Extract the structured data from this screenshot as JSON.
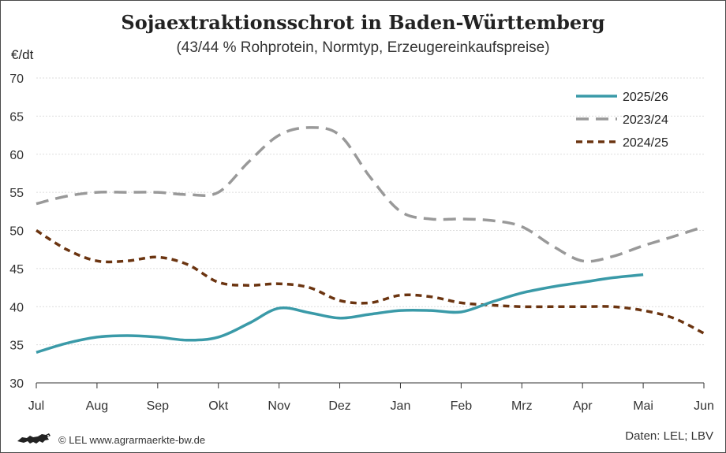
{
  "header": {
    "title": "Sojaextraktionsschrot in Baden-Württemberg",
    "subtitle": "(43/44 % Rohprotein, Normtyp, Erzeugereinkaufspreise)",
    "unit": "€/dt"
  },
  "footer": {
    "copyright": "© LEL www.agrarmaerkte-bw.de",
    "source": "Daten: LEL; LBV",
    "logo_icon": "lion-logo-icon"
  },
  "chart_data": {
    "type": "line",
    "categories": [
      "Jul",
      "Aug",
      "Sep",
      "Okt",
      "Nov",
      "Dez",
      "Jan",
      "Feb",
      "Mrz",
      "Apr",
      "Mai",
      "Jun"
    ],
    "x": [
      0,
      0.5,
      1,
      1.5,
      2,
      2.5,
      3,
      3.5,
      4,
      4.5,
      5,
      5.5,
      6,
      6.5,
      7,
      7.5,
      8,
      8.5,
      9,
      9.5,
      10,
      10.5,
      11
    ],
    "ylim": [
      30,
      70
    ],
    "yticks": [
      30,
      35,
      40,
      45,
      50,
      55,
      60,
      65,
      70
    ],
    "grid": true,
    "legend": "top-right",
    "series": [
      {
        "name": "2025/26",
        "color": "#3a9aa8",
        "dash": "solid",
        "values": [
          34,
          35.2,
          36,
          36.2,
          36,
          35.6,
          36,
          37.8,
          39.8,
          39.2,
          38.5,
          39,
          39.5,
          39.5,
          39.3,
          40.6,
          41.8,
          42.6,
          43.2,
          43.8,
          44.2,
          null,
          null
        ]
      },
      {
        "name": "2023/24",
        "color": "#999999",
        "dash": "long",
        "values": [
          53.5,
          54.5,
          55,
          55,
          55,
          54.7,
          55,
          59,
          62.5,
          63.5,
          62.5,
          57,
          52.5,
          51.5,
          51.5,
          51.3,
          50.5,
          48,
          46,
          46.6,
          48,
          49.2,
          50.5
        ]
      },
      {
        "name": "2024/25",
        "color": "#6b3410",
        "dash": "short",
        "values": [
          50,
          47.5,
          46,
          46,
          46.5,
          45.5,
          43.2,
          42.8,
          43,
          42.5,
          40.8,
          40.5,
          41.5,
          41.3,
          40.5,
          40.2,
          40,
          40,
          40,
          40,
          39.5,
          38.5,
          36.5
        ]
      }
    ]
  }
}
